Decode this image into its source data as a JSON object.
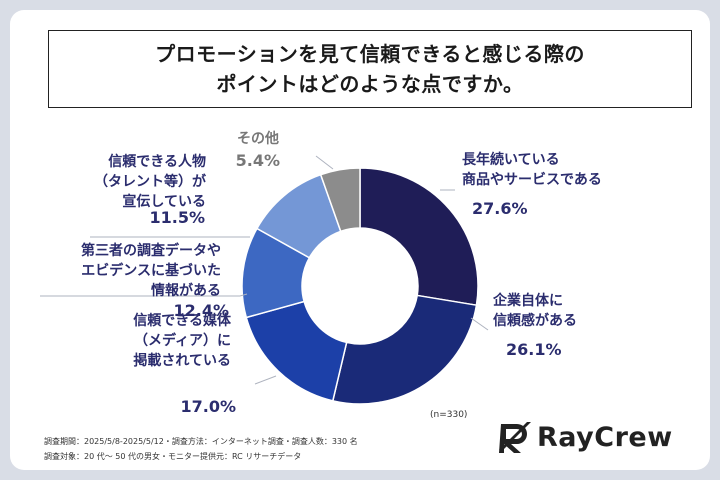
{
  "title": {
    "line1": "プロモーションを見て信頼できると感じる際の",
    "line2": "ポイントはどのような点ですか。"
  },
  "chart_data": {
    "type": "pie",
    "variant": "donut",
    "title": "プロモーションを見て信頼できると感じる際のポイントはどのような点ですか。",
    "sample_note": "(n=330)",
    "slices": [
      {
        "label_lines": [
          "長年続いている",
          "商品やサービスである"
        ],
        "pct_label": "27.6%",
        "value": 27.6,
        "color": "#1f1d57"
      },
      {
        "label_lines": [
          "企業自体に",
          "信頼感がある"
        ],
        "pct_label": "26.1%",
        "value": 26.1,
        "color": "#1a2a78"
      },
      {
        "label_lines": [
          "信頼できる媒体",
          "（メディア）に",
          "掲載されている"
        ],
        "pct_label": "17.0%",
        "value": 17.0,
        "color": "#1c40a8"
      },
      {
        "label_lines": [
          "第三者の調査データや",
          "エビデンスに基づいた",
          "情報がある"
        ],
        "pct_label": "12.4%",
        "value": 12.4,
        "color": "#3d68c2"
      },
      {
        "label_lines": [
          "信頼できる人物",
          "（タレント等）が",
          "宣伝している"
        ],
        "pct_label": "11.5%",
        "value": 11.5,
        "color": "#7497d6"
      },
      {
        "label_lines": [
          "その他"
        ],
        "pct_label": "5.4%",
        "value": 5.4,
        "color": "#8c8c8c"
      }
    ]
  },
  "footer": {
    "survey_line1": "調査期間：2025/5/8-2025/5/12・調査方法：インターネット調査・調査人数：330 名",
    "survey_line2": "調査対象：20 代〜 50 代の男女・モニター提供元：RC リサーチデータ"
  },
  "logo": {
    "text": "RayCrew"
  }
}
